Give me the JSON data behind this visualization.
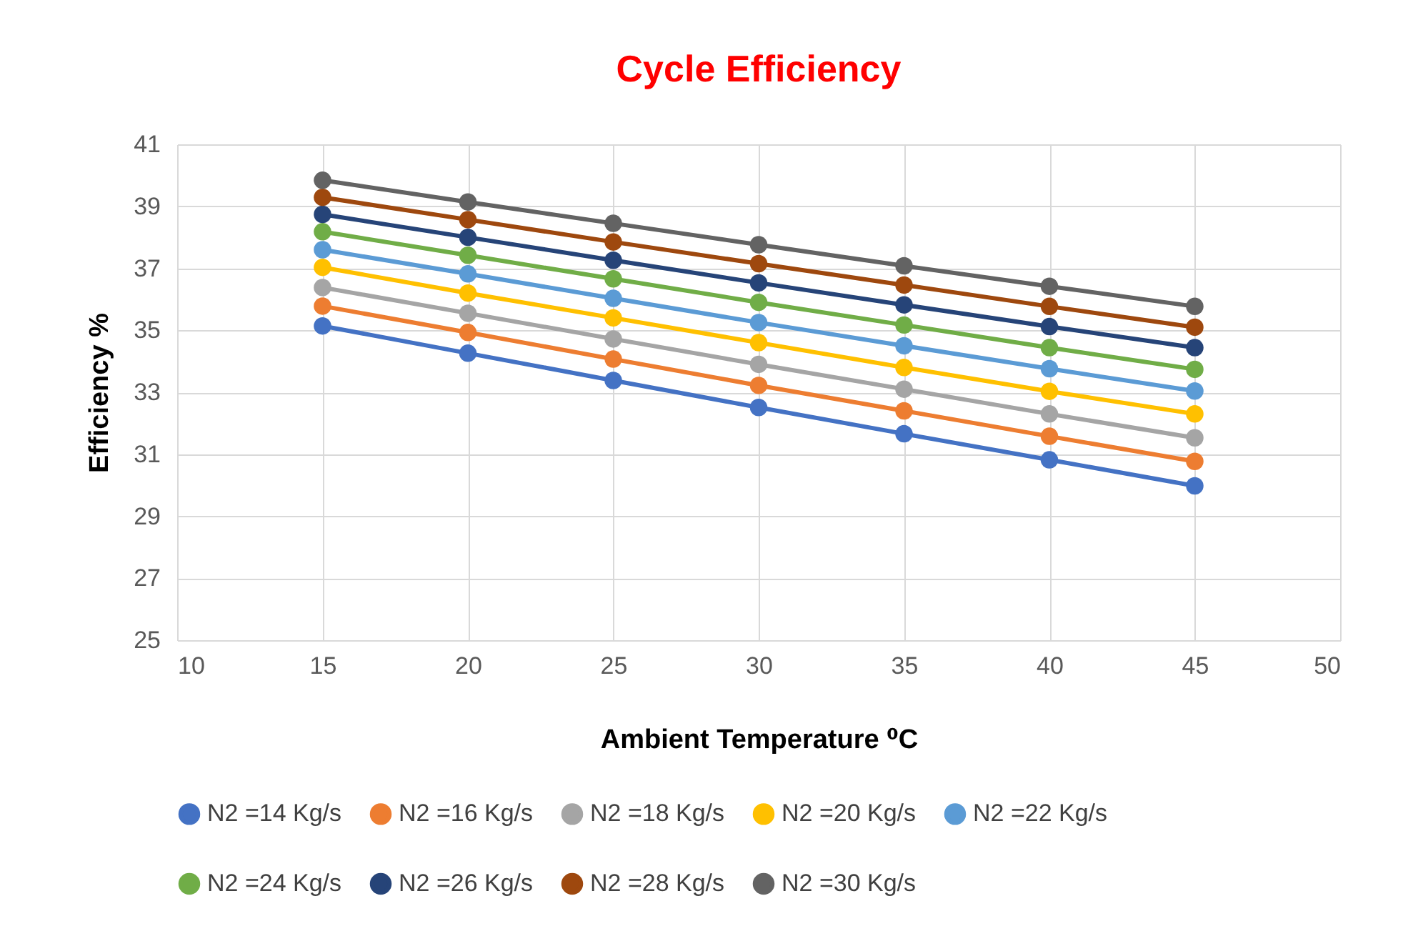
{
  "chart_data": {
    "type": "line",
    "title": "Cycle Efficiency",
    "xlabel": "Ambient Temperature ⁰C",
    "ylabel": "Efficiency %",
    "x": [
      15,
      20,
      25,
      30,
      35,
      40,
      45
    ],
    "xlim": [
      10,
      50
    ],
    "xticks": [
      10,
      15,
      20,
      25,
      30,
      35,
      40,
      45,
      50
    ],
    "ylim": [
      25,
      41
    ],
    "yticks": [
      25,
      27,
      29,
      31,
      33,
      35,
      37,
      39,
      41
    ],
    "grid": true,
    "legend": "bottom",
    "marker": "circle",
    "line_style": "solid",
    "series": [
      {
        "name": "N2 =14 Kg/s",
        "color": "#4472c4",
        "values": [
          35.14,
          34.26,
          33.38,
          32.51,
          31.66,
          30.82,
          29.98
        ]
      },
      {
        "name": "N2 =16 Kg/s",
        "color": "#ed7d31",
        "values": [
          35.78,
          34.93,
          34.07,
          33.22,
          32.4,
          31.58,
          30.77
        ]
      },
      {
        "name": "N2 =18 Kg/s",
        "color": "#a5a5a5",
        "values": [
          36.38,
          35.55,
          34.72,
          33.9,
          33.1,
          32.3,
          31.53
        ]
      },
      {
        "name": "N2 =20 Kg/s",
        "color": "#ffc000",
        "values": [
          37.03,
          36.2,
          35.4,
          34.6,
          33.8,
          33.03,
          32.3
        ]
      },
      {
        "name": "N2 =22 Kg/s",
        "color": "#5b9bd5",
        "values": [
          37.6,
          36.82,
          36.03,
          35.25,
          34.5,
          33.76,
          33.04
        ]
      },
      {
        "name": "N2 =24 Kg/s",
        "color": "#70ad47",
        "values": [
          38.18,
          37.42,
          36.66,
          35.9,
          35.17,
          34.44,
          33.74
        ]
      },
      {
        "name": "N2 =26 Kg/s",
        "color": "#264478",
        "values": [
          38.74,
          38.0,
          37.26,
          36.53,
          35.82,
          35.12,
          34.44
        ]
      },
      {
        "name": "N2 =28 Kg/s",
        "color": "#9e480e",
        "values": [
          39.29,
          38.57,
          37.85,
          37.15,
          36.46,
          35.77,
          35.1
        ]
      },
      {
        "name": "N2 =30 Kg/s",
        "color": "#636363",
        "values": [
          39.84,
          39.14,
          38.45,
          37.76,
          37.08,
          36.42,
          35.77
        ]
      }
    ]
  }
}
